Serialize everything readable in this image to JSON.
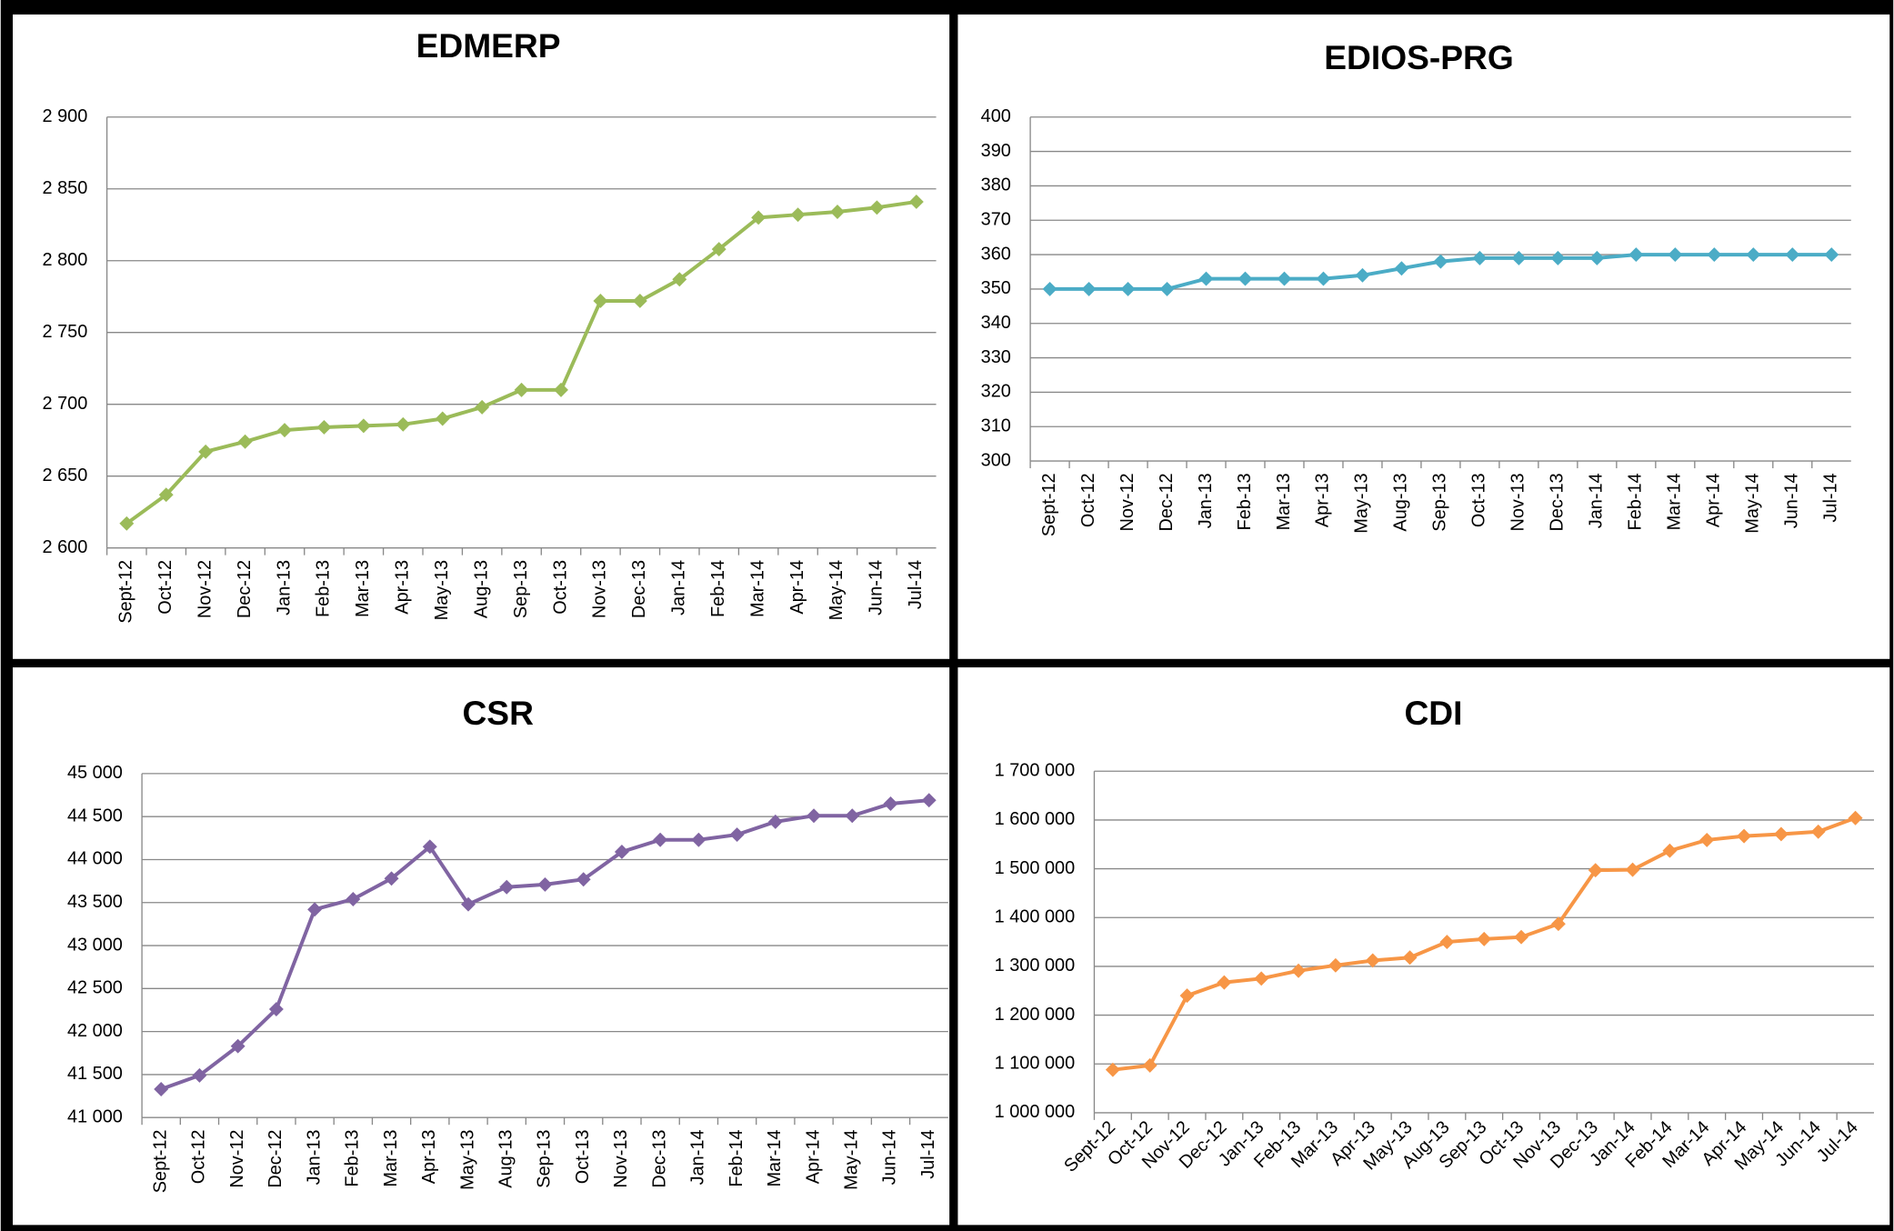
{
  "chart_data": [
    {
      "type": "line",
      "title": "EDMERP",
      "categories": [
        "Sept-12",
        "Oct-12",
        "Nov-12",
        "Dec-12",
        "Jan-13",
        "Feb-13",
        "Mar-13",
        "Apr-13",
        "May-13",
        "Aug-13",
        "Sep-13",
        "Oct-13",
        "Nov-13",
        "Dec-13",
        "Jan-14",
        "Feb-14",
        "Mar-14",
        "Apr-14",
        "May-14",
        "Jun-14",
        "Jul-14"
      ],
      "series": [
        {
          "color": "#9bbb59",
          "values": [
            2617,
            2637,
            2667,
            2674,
            2682,
            2684,
            2685,
            2686,
            2690,
            2698,
            2710,
            2710,
            2772,
            2772,
            2787,
            2808,
            2830,
            2832,
            2834,
            2837,
            2841
          ]
        }
      ],
      "ylim": [
        2600,
        2900
      ],
      "yticks": [
        {
          "value": 2600,
          "label": "2 600"
        },
        {
          "value": 2650,
          "label": "2 650"
        },
        {
          "value": 2700,
          "label": "2 700"
        },
        {
          "value": 2750,
          "label": "2 750"
        },
        {
          "value": 2800,
          "label": "2 800"
        },
        {
          "value": 2850,
          "label": "2 850"
        },
        {
          "value": 2900,
          "label": "2 900"
        }
      ],
      "grid": true
    },
    {
      "type": "line",
      "title": "EDIOS-PRG",
      "categories": [
        "Sept-12",
        "Oct-12",
        "Nov-12",
        "Dec-12",
        "Jan-13",
        "Feb-13",
        "Mar-13",
        "Apr-13",
        "May-13",
        "Aug-13",
        "Sep-13",
        "Oct-13",
        "Nov-13",
        "Dec-13",
        "Jan-14",
        "Feb-14",
        "Mar-14",
        "Apr-14",
        "May-14",
        "Jun-14",
        "Jul-14"
      ],
      "series": [
        {
          "color": "#4bacc6",
          "values": [
            350,
            350,
            350,
            350,
            353,
            353,
            353,
            353,
            354,
            356,
            358,
            359,
            359,
            359,
            359,
            360,
            360,
            360,
            360,
            360,
            360
          ]
        }
      ],
      "ylim": [
        300,
        400
      ],
      "yticks": [
        300,
        310,
        320,
        330,
        340,
        350,
        360,
        370,
        380,
        390,
        400
      ],
      "grid": true
    },
    {
      "type": "line",
      "title": "CSR",
      "categories": [
        "Sept-12",
        "Oct-12",
        "Nov-12",
        "Dec-12",
        "Jan-13",
        "Feb-13",
        "Mar-13",
        "Apr-13",
        "May-13",
        "Aug-13",
        "Sep-13",
        "Oct-13",
        "Nov-13",
        "Dec-13",
        "Jan-14",
        "Feb-14",
        "Mar-14",
        "Apr-14",
        "May-14",
        "Jun-14",
        "Jul-14"
      ],
      "series": [
        {
          "color": "#8064a2",
          "values": [
            41330,
            41490,
            41830,
            42260,
            43420,
            43540,
            43780,
            44150,
            43480,
            43680,
            43710,
            43770,
            44090,
            44230,
            44230,
            44290,
            44440,
            44510,
            44510,
            44650,
            44690
          ]
        }
      ],
      "ylim": [
        41000,
        45000
      ],
      "yticks": [
        {
          "value": 41000,
          "label": "41 000"
        },
        {
          "value": 41500,
          "label": "41 500"
        },
        {
          "value": 42000,
          "label": "42 000"
        },
        {
          "value": 42500,
          "label": "42 500"
        },
        {
          "value": 43000,
          "label": "43 000"
        },
        {
          "value": 43500,
          "label": "43 500"
        },
        {
          "value": 44000,
          "label": "44 000"
        },
        {
          "value": 44500,
          "label": "44 500"
        },
        {
          "value": 45000,
          "label": "45 000"
        }
      ],
      "grid": true
    },
    {
      "type": "line",
      "title": "CDI",
      "categories": [
        "Sept-12",
        "Oct-12",
        "Nov-12",
        "Dec-12",
        "Jan-13",
        "Feb-13",
        "Mar-13",
        "Apr-13",
        "May-13",
        "Aug-13",
        "Sep-13",
        "Oct-13",
        "Nov-13",
        "Dec-13",
        "Jan-14",
        "Feb-14",
        "Mar-14",
        "Apr-14",
        "May-14",
        "Jun-14",
        "Jul-14"
      ],
      "series": [
        {
          "color": "#f79646",
          "values": [
            1088000,
            1097000,
            1240000,
            1267000,
            1275000,
            1291000,
            1302000,
            1312000,
            1318000,
            1350000,
            1356000,
            1360000,
            1387000,
            1497000,
            1498000,
            1537000,
            1559000,
            1567000,
            1571000,
            1576000,
            1604000
          ]
        }
      ],
      "ylim": [
        1000000,
        1700000
      ],
      "yticks": [
        {
          "value": 1000000,
          "label": "1 000 000"
        },
        {
          "value": 1100000,
          "label": "1 100 000"
        },
        {
          "value": 1200000,
          "label": "1 200 000"
        },
        {
          "value": 1300000,
          "label": "1 300 000"
        },
        {
          "value": 1400000,
          "label": "1 400 000"
        },
        {
          "value": 1500000,
          "label": "1 500 000"
        },
        {
          "value": 1600000,
          "label": "1 600 000"
        },
        {
          "value": 1700000,
          "label": "1 700 000"
        }
      ],
      "grid": true
    }
  ]
}
